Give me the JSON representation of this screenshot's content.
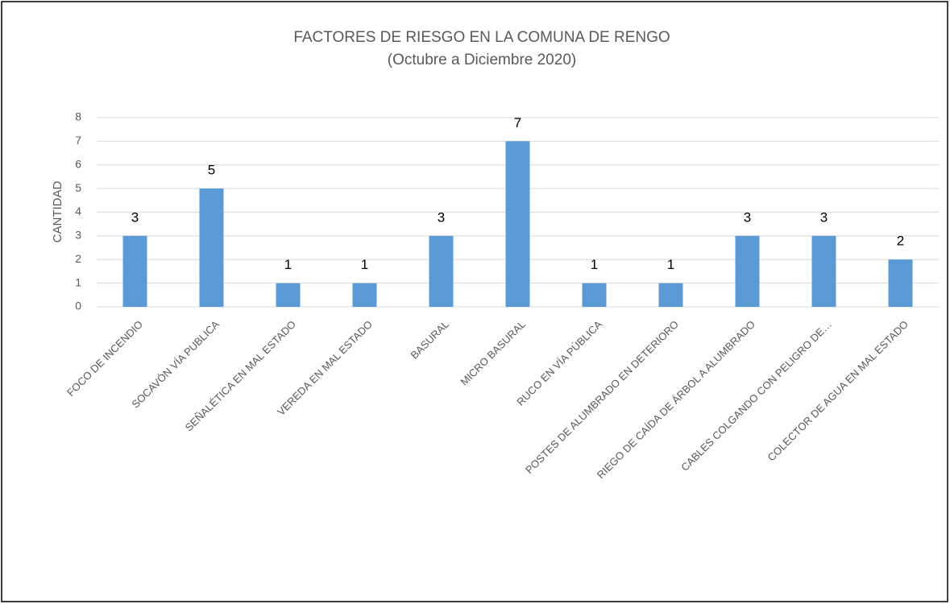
{
  "chart_data": {
    "type": "bar",
    "title": "FACTORES DE RIESGO EN LA COMUNA DE RENGO",
    "subtitle": "(Octubre a Diciembre 2020)",
    "y_label": "CANTIDAD",
    "categories": [
      "FOCO DE INCENDIO",
      "SOCAVÓN VÍA PUBLICA",
      "SEÑALÉTICA EN MAL ESTADO",
      "VEREDA EN MAL ESTADO",
      "BASURAL",
      "MICRO BASURAL",
      "RUCO EN VÍA PÚBLICA",
      "POSTES DE ALUMBRADO EN DETERIORO",
      "RIEGO DE CAÍDA DE ÁRBOL A ALUMBRADO",
      "CABLES COLGANDO CON PELIGRO DE…",
      "COLECTOR DE AGUA EN MAL ESTADO"
    ],
    "values": [
      3,
      5,
      1,
      1,
      3,
      7,
      1,
      1,
      3,
      3,
      2
    ],
    "color": "#5b9bd5",
    "ylim": [
      0,
      8
    ],
    "yticks": [
      0,
      1,
      2,
      3,
      4,
      5,
      6,
      7,
      8
    ],
    "grid": true
  }
}
